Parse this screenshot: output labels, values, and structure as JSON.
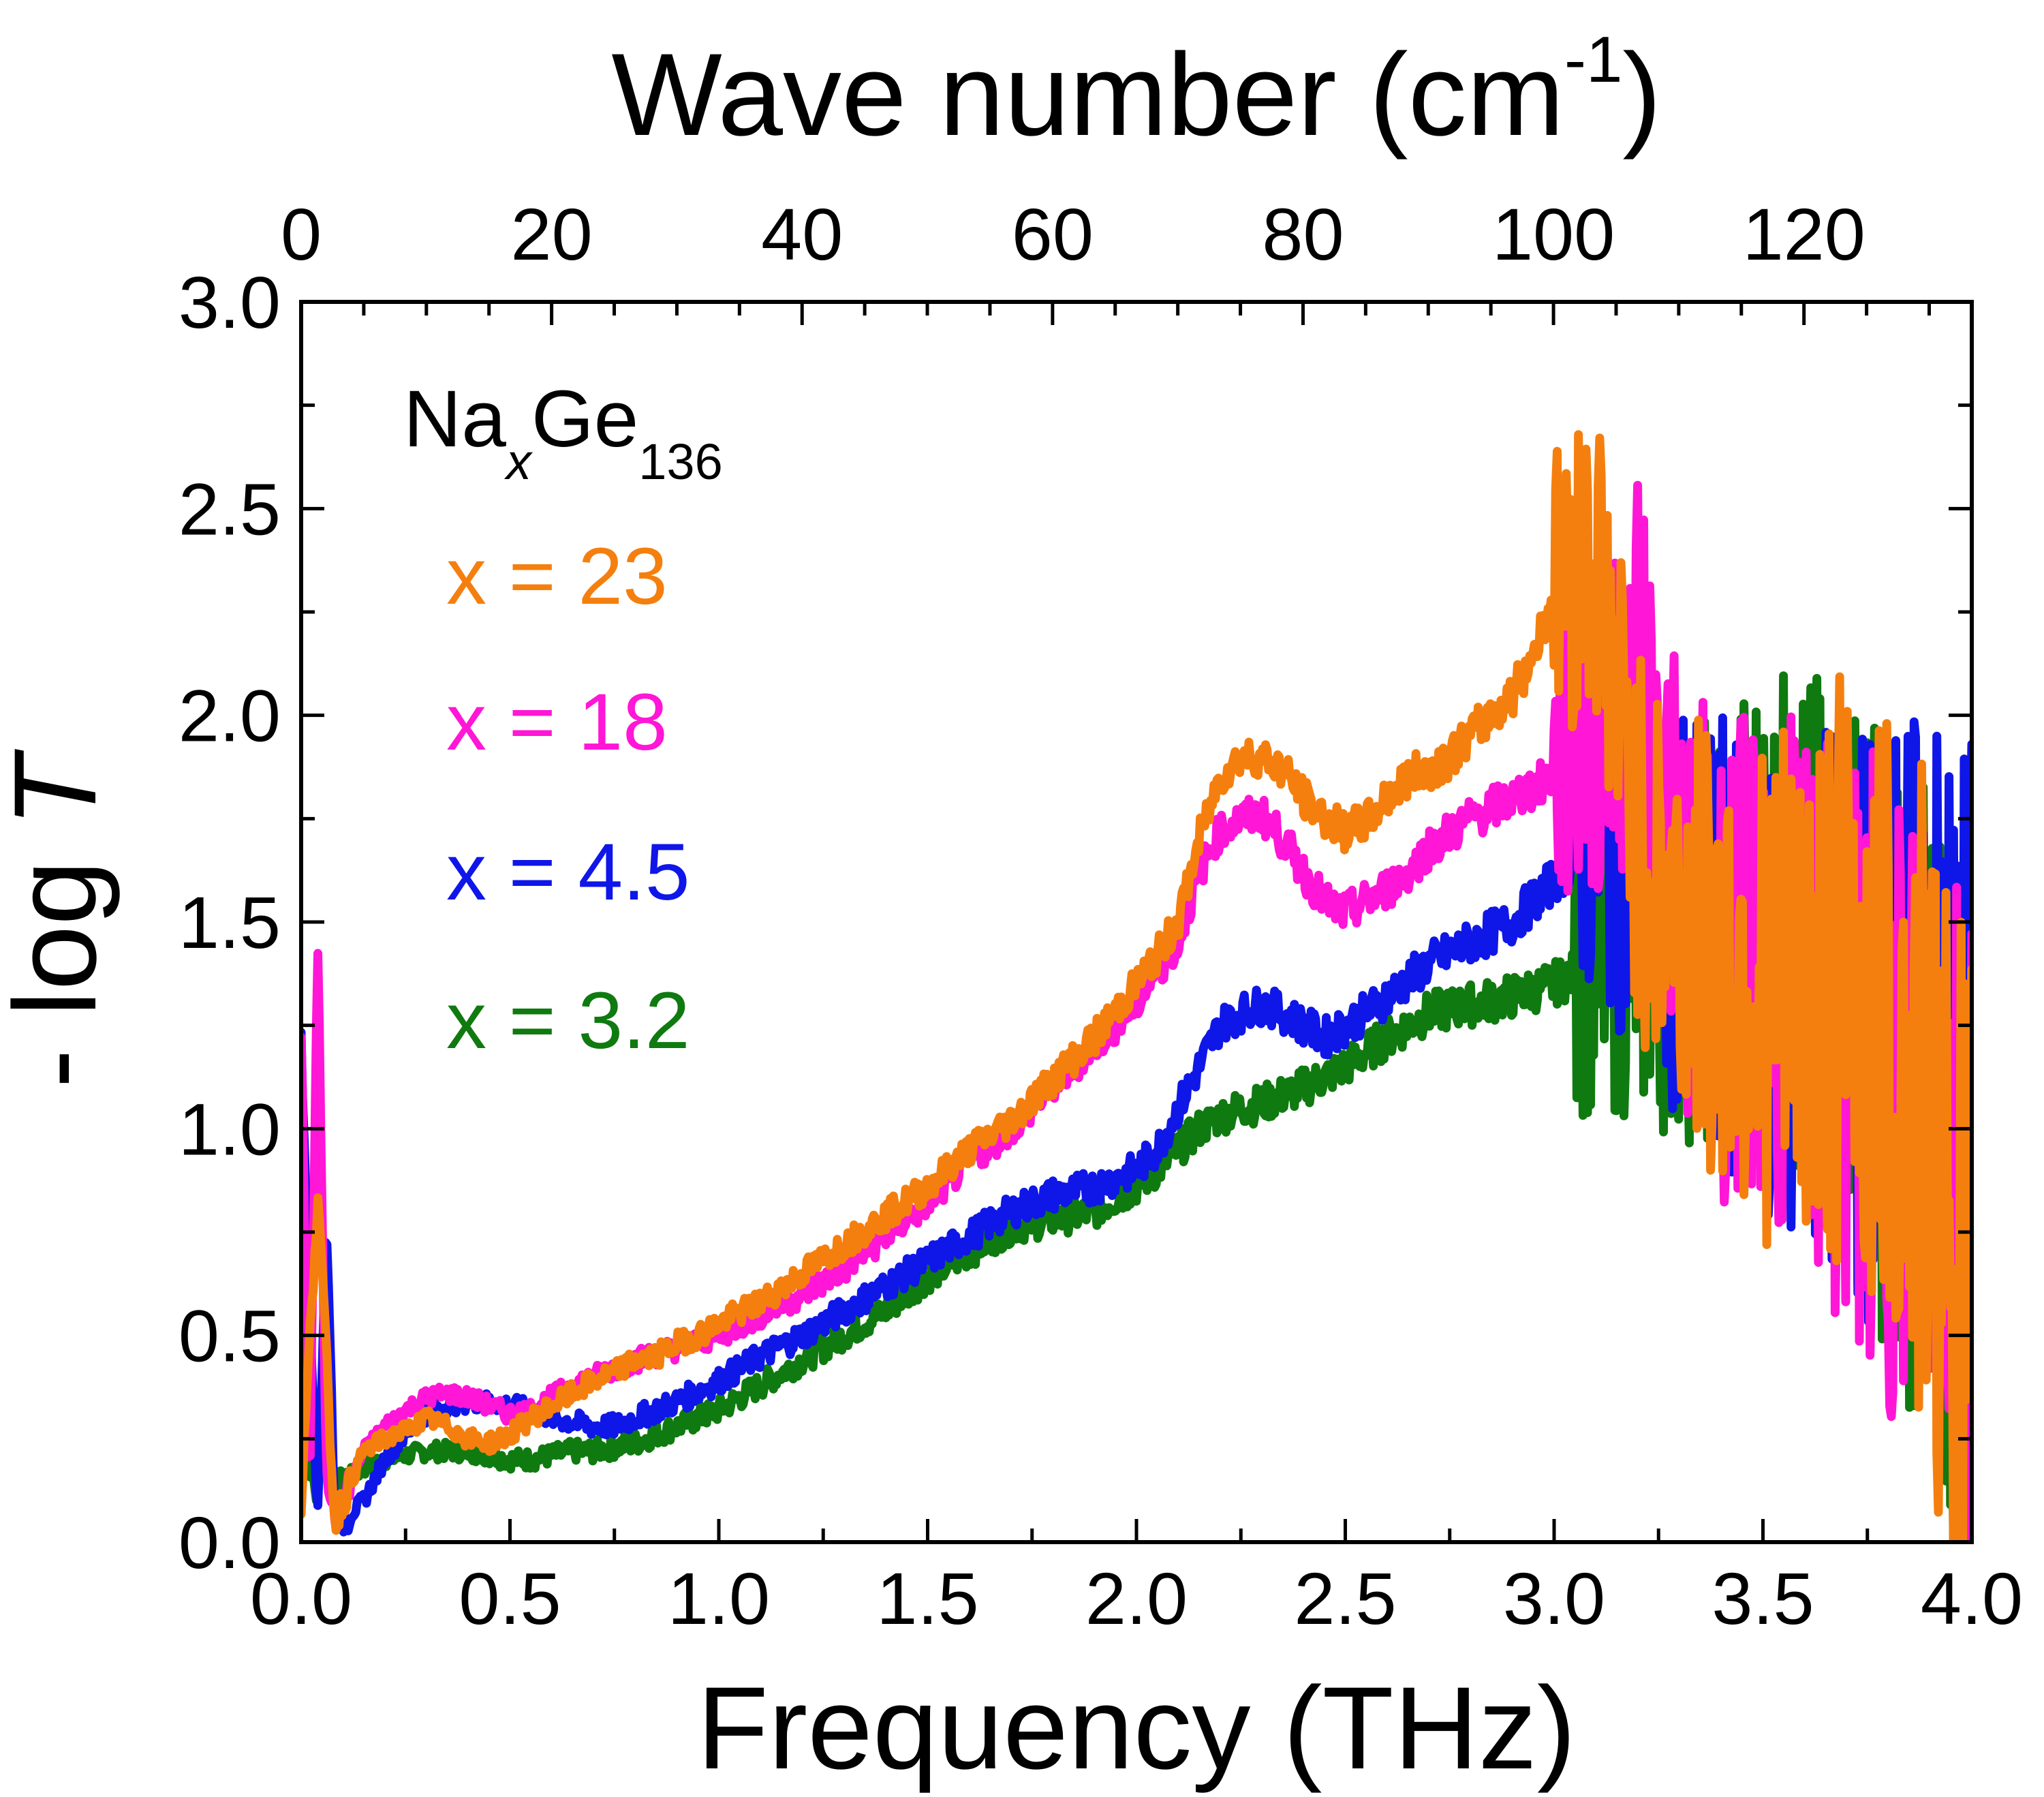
{
  "chart_data": {
    "type": "line",
    "title": "",
    "xlabel": "Frequency (THz)",
    "ylabel": "- log T",
    "x2label": "Wave number (cm-1)",
    "xlim": [
      0.0,
      4.0
    ],
    "ylim": [
      0.0,
      3.0
    ],
    "x2lim": [
      0,
      133.4
    ],
    "xticks": [
      "0.0",
      "0.5",
      "1.0",
      "1.5",
      "2.0",
      "2.5",
      "3.0",
      "3.5",
      "4.0"
    ],
    "yticks": [
      "0.0",
      "0.5",
      "1.0",
      "1.5",
      "2.0",
      "2.5",
      "3.0"
    ],
    "x2ticks": [
      "0",
      "20",
      "40",
      "60",
      "80",
      "100",
      "120"
    ],
    "grid": false,
    "legend": {
      "title": "Na",
      "title_sub_x": "x",
      "title_element": "Ge",
      "title_sub_n": "136",
      "placement": "top-left"
    },
    "series": [
      {
        "name": "x = 23",
        "color": "#f57f0e",
        "noise_start": 3.0,
        "x": [
          0.0,
          0.04,
          0.08,
          0.1,
          0.15,
          0.2,
          0.25,
          0.3,
          0.35,
          0.4,
          0.45,
          0.5,
          0.55,
          0.6,
          0.65,
          0.7,
          0.75,
          0.8,
          0.85,
          0.9,
          0.95,
          1.0,
          1.1,
          1.2,
          1.3,
          1.4,
          1.5,
          1.6,
          1.7,
          1.8,
          1.9,
          2.0,
          2.05,
          2.1,
          2.15,
          2.2,
          2.25,
          2.3,
          2.35,
          2.4,
          2.45,
          2.5,
          2.55,
          2.6,
          2.65,
          2.7,
          2.75,
          2.8,
          2.85,
          2.9,
          2.95,
          3.0,
          3.1,
          3.2,
          3.3,
          3.4,
          3.5,
          3.6,
          3.7,
          3.8,
          3.9,
          4.0
        ],
        "y": [
          0.1,
          0.85,
          0.05,
          0.1,
          0.22,
          0.25,
          0.27,
          0.3,
          0.28,
          0.25,
          0.24,
          0.26,
          0.3,
          0.33,
          0.36,
          0.39,
          0.41,
          0.44,
          0.45,
          0.48,
          0.5,
          0.53,
          0.58,
          0.65,
          0.72,
          0.79,
          0.86,
          0.95,
          1.02,
          1.12,
          1.22,
          1.35,
          1.42,
          1.5,
          1.7,
          1.85,
          1.9,
          1.9,
          1.87,
          1.8,
          1.75,
          1.72,
          1.74,
          1.8,
          1.85,
          1.87,
          1.9,
          1.95,
          2.0,
          2.05,
          2.15,
          2.3,
          2.4,
          1.7,
          1.5,
          1.4,
          1.35,
          1.3,
          1.4,
          1.2,
          1.0,
          0.6
        ]
      },
      {
        "name": "x = 18",
        "color": "#ff16d6",
        "noise_start": 3.0,
        "x": [
          0.0,
          0.02,
          0.04,
          0.06,
          0.08,
          0.1,
          0.15,
          0.2,
          0.25,
          0.3,
          0.35,
          0.4,
          0.45,
          0.5,
          0.55,
          0.6,
          0.65,
          0.7,
          0.75,
          0.8,
          0.9,
          1.0,
          1.1,
          1.2,
          1.3,
          1.4,
          1.5,
          1.6,
          1.7,
          1.8,
          1.9,
          2.0,
          2.05,
          2.1,
          2.15,
          2.2,
          2.25,
          2.3,
          2.35,
          2.4,
          2.45,
          2.5,
          2.55,
          2.6,
          2.65,
          2.7,
          2.8,
          2.9,
          3.0,
          3.1,
          3.2,
          3.3,
          3.4,
          3.5,
          3.6,
          3.7,
          3.8,
          3.9,
          4.0
        ],
        "y": [
          1.25,
          0.1,
          1.45,
          0.2,
          0.05,
          0.1,
          0.22,
          0.28,
          0.32,
          0.35,
          0.36,
          0.35,
          0.33,
          0.31,
          0.32,
          0.35,
          0.38,
          0.4,
          0.42,
          0.44,
          0.47,
          0.5,
          0.55,
          0.6,
          0.66,
          0.74,
          0.82,
          0.92,
          1.0,
          1.1,
          1.2,
          1.3,
          1.38,
          1.45,
          1.62,
          1.72,
          1.75,
          1.76,
          1.7,
          1.62,
          1.55,
          1.52,
          1.55,
          1.58,
          1.62,
          1.68,
          1.75,
          1.8,
          1.85,
          1.95,
          2.1,
          1.6,
          1.4,
          1.4,
          1.3,
          1.2,
          1.1,
          1.0,
          0.8
        ]
      },
      {
        "name": "x = 4.5",
        "color": "#0f16e8",
        "noise_start": 3.05,
        "x": [
          0.0,
          0.04,
          0.06,
          0.08,
          0.1,
          0.15,
          0.2,
          0.25,
          0.3,
          0.35,
          0.4,
          0.45,
          0.5,
          0.55,
          0.6,
          0.65,
          0.7,
          0.75,
          0.8,
          0.9,
          1.0,
          1.1,
          1.2,
          1.3,
          1.4,
          1.5,
          1.6,
          1.7,
          1.8,
          1.9,
          2.0,
          2.05,
          2.1,
          2.15,
          2.2,
          2.25,
          2.3,
          2.35,
          2.4,
          2.45,
          2.5,
          2.55,
          2.6,
          2.7,
          2.8,
          2.9,
          3.0,
          3.1,
          3.2,
          3.3,
          3.4,
          3.5,
          3.6,
          3.7,
          3.8,
          3.9,
          4.0
        ],
        "y": [
          1.2,
          0.05,
          0.8,
          0.1,
          0.05,
          0.1,
          0.2,
          0.26,
          0.31,
          0.33,
          0.34,
          0.34,
          0.33,
          0.32,
          0.3,
          0.29,
          0.28,
          0.28,
          0.3,
          0.34,
          0.39,
          0.45,
          0.5,
          0.56,
          0.62,
          0.68,
          0.74,
          0.8,
          0.84,
          0.86,
          0.9,
          0.95,
          1.05,
          1.15,
          1.25,
          1.28,
          1.3,
          1.28,
          1.25,
          1.22,
          1.25,
          1.28,
          1.32,
          1.4,
          1.45,
          1.5,
          1.6,
          1.7,
          1.6,
          1.5,
          1.45,
          1.35,
          1.3,
          1.3,
          1.25,
          1.2,
          1.1
        ]
      },
      {
        "name": "x = 3.2",
        "color": "#0f7a0f",
        "noise_start": 3.05,
        "x": [
          0.0,
          0.02,
          0.04,
          0.06,
          0.08,
          0.1,
          0.15,
          0.2,
          0.25,
          0.3,
          0.35,
          0.4,
          0.45,
          0.5,
          0.55,
          0.6,
          0.65,
          0.7,
          0.75,
          0.8,
          0.9,
          1.0,
          1.1,
          1.2,
          1.3,
          1.4,
          1.5,
          1.6,
          1.7,
          1.8,
          1.9,
          2.0,
          2.05,
          2.1,
          2.15,
          2.2,
          2.25,
          2.3,
          2.35,
          2.4,
          2.5,
          2.6,
          2.7,
          2.8,
          2.9,
          3.0,
          3.1,
          3.2,
          3.3,
          3.4,
          3.5,
          3.6,
          3.7,
          3.8,
          3.9,
          4.0
        ],
        "y": [
          0.9,
          0.2,
          0.1,
          0.5,
          0.1,
          0.15,
          0.18,
          0.2,
          0.21,
          0.22,
          0.22,
          0.22,
          0.21,
          0.2,
          0.2,
          0.21,
          0.22,
          0.22,
          0.23,
          0.24,
          0.28,
          0.32,
          0.38,
          0.44,
          0.5,
          0.56,
          0.64,
          0.7,
          0.76,
          0.78,
          0.8,
          0.86,
          0.9,
          0.95,
          1.0,
          1.03,
          1.05,
          1.06,
          1.08,
          1.1,
          1.15,
          1.22,
          1.28,
          1.3,
          1.32,
          1.35,
          1.4,
          1.45,
          1.45,
          1.5,
          1.55,
          1.45,
          1.4,
          1.2,
          1.0,
          0.5
        ]
      }
    ]
  }
}
